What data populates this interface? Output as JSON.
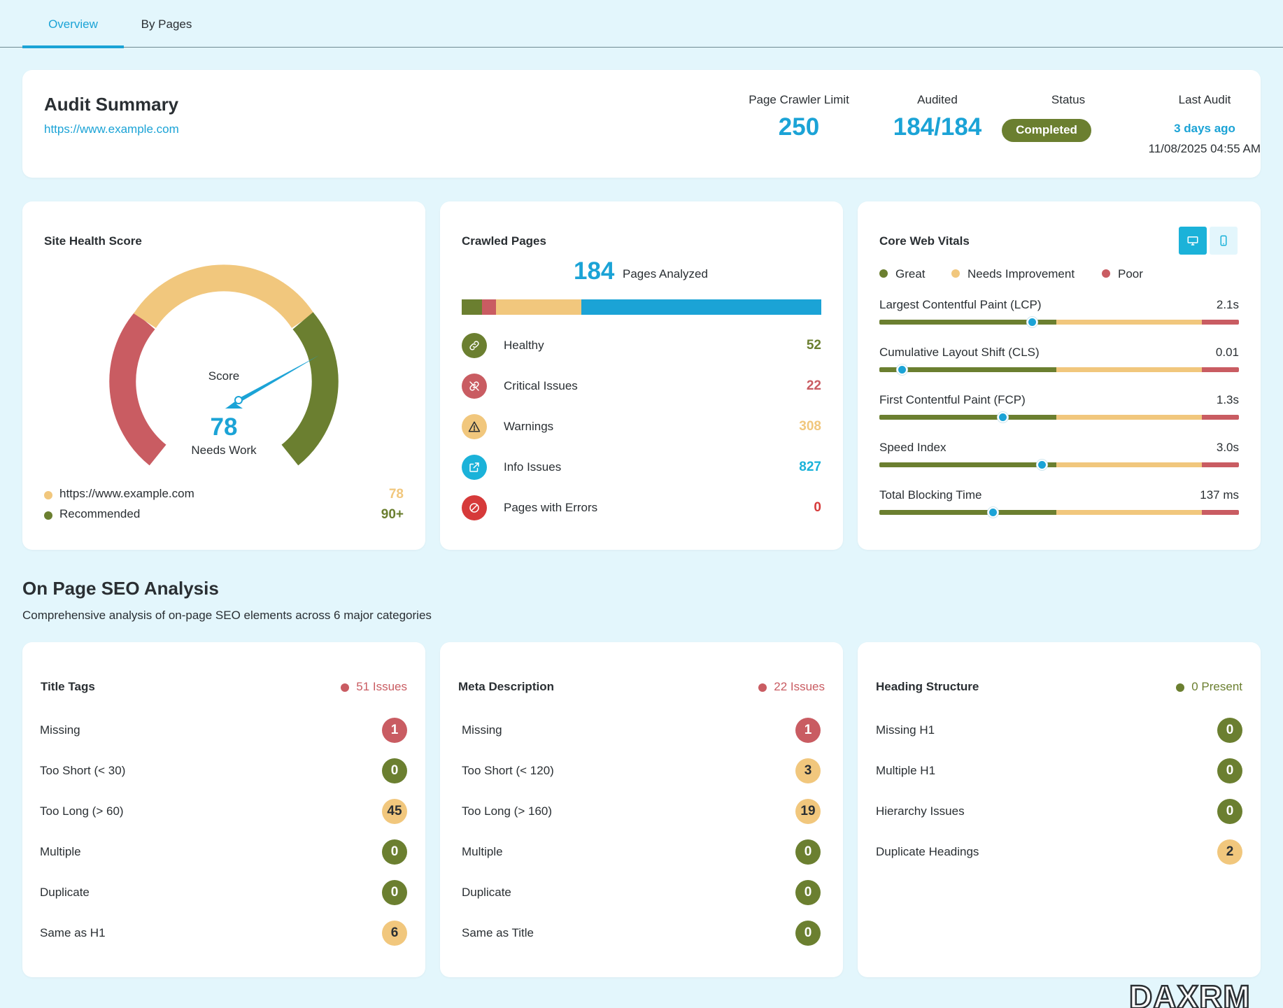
{
  "tabs": [
    {
      "label": "Overview",
      "active": true
    },
    {
      "label": "By Pages",
      "active": false
    }
  ],
  "audit_summary": {
    "title": "Audit Summary",
    "url": "https://www.example.com",
    "stats": {
      "crawler_limit_label": "Page Crawler Limit",
      "crawler_limit_value": "250",
      "audited_label": "Audited",
      "audited_value": "184/184",
      "status_label": "Status",
      "status_value": "Completed",
      "last_audit_label": "Last Audit",
      "last_audit_relative": "3 days ago",
      "last_audit_datetime": "11/08/2025 04:55 AM"
    }
  },
  "site_health": {
    "title": "Site Health Score",
    "score_label": "Score",
    "score": "78",
    "rating": "Needs Work",
    "legend": [
      {
        "label": "https://www.example.com",
        "value": "78",
        "color": "#f1c77d"
      },
      {
        "label": "Recommended",
        "value": "90+",
        "color": "#6b7f30"
      }
    ]
  },
  "crawled_pages": {
    "title": "Crawled Pages",
    "count": "184",
    "count_label": "Pages Analyzed",
    "items": [
      {
        "label": "Healthy",
        "value": "52",
        "color": "#6b7f30",
        "icon": "link-icon"
      },
      {
        "label": "Critical Issues",
        "value": "22",
        "color": "#c95c62",
        "icon": "broken-link-icon"
      },
      {
        "label": "Warnings",
        "value": "308",
        "color": "#f1c77d",
        "icon": "warning-icon"
      },
      {
        "label": "Info Issues",
        "value": "827",
        "color": "#1ba3d6",
        "icon": "external-link-icon"
      },
      {
        "label": "Pages with Errors",
        "value": "0",
        "color": "#d63a3a",
        "icon": "blocked-icon"
      }
    ]
  },
  "core_web_vitals": {
    "title": "Core Web Vitals",
    "legend": [
      {
        "label": "Great",
        "color": "#6b7f30"
      },
      {
        "label": "Needs Improvement",
        "color": "#f1c77d"
      },
      {
        "label": "Poor",
        "color": "#c95c62"
      }
    ],
    "metrics": [
      {
        "label": "Largest Contentful Paint (LCP)",
        "value": "2.1s",
        "position": 0.425
      },
      {
        "label": "Cumulative Layout Shift (CLS)",
        "value": "0.01",
        "position": 0.063
      },
      {
        "label": "First Contentful Paint (FCP)",
        "value": "1.3s",
        "position": 0.343
      },
      {
        "label": "Speed Index",
        "value": "3.0s",
        "position": 0.452
      },
      {
        "label": "Total Blocking Time",
        "value": "137 ms",
        "position": 0.317
      }
    ]
  },
  "seo_analysis": {
    "title": "On Page SEO Analysis",
    "subtitle": "Comprehensive analysis of on-page SEO elements across 6 major categories",
    "cards": [
      {
        "title": "Title Tags",
        "issues": "51 Issues",
        "issues_color": "#c95c62",
        "rows": [
          {
            "label": "Missing",
            "value": "1",
            "level": "red"
          },
          {
            "label": "Too Short (< 30)",
            "value": "0",
            "level": "green"
          },
          {
            "label": "Too Long (> 60)",
            "value": "45",
            "level": "yellow"
          },
          {
            "label": "Multiple",
            "value": "0",
            "level": "green"
          },
          {
            "label": "Duplicate",
            "value": "0",
            "level": "green"
          },
          {
            "label": "Same as H1",
            "value": "6",
            "level": "yellow"
          }
        ]
      },
      {
        "title": "Meta Description",
        "issues": "22 Issues",
        "issues_color": "#c95c62",
        "rows": [
          {
            "label": "Missing",
            "value": "1",
            "level": "red"
          },
          {
            "label": "Too Short (< 120)",
            "value": "3",
            "level": "yellow"
          },
          {
            "label": "Too Long (> 160)",
            "value": "19",
            "level": "yellow"
          },
          {
            "label": "Multiple",
            "value": "0",
            "level": "green"
          },
          {
            "label": "Duplicate",
            "value": "0",
            "level": "green"
          },
          {
            "label": "Same as Title",
            "value": "0",
            "level": "green"
          }
        ]
      },
      {
        "title": "Heading Structure",
        "issues": "0 Present",
        "issues_color": "#6b7f30",
        "rows": [
          {
            "label": "Missing H1",
            "value": "0",
            "level": "green"
          },
          {
            "label": "Multiple H1",
            "value": "0",
            "level": "green"
          },
          {
            "label": "Hierarchy Issues",
            "value": "0",
            "level": "green"
          },
          {
            "label": "Duplicate Headings",
            "value": "2",
            "level": "yellow"
          }
        ]
      }
    ]
  },
  "watermark": "DAXRM"
}
